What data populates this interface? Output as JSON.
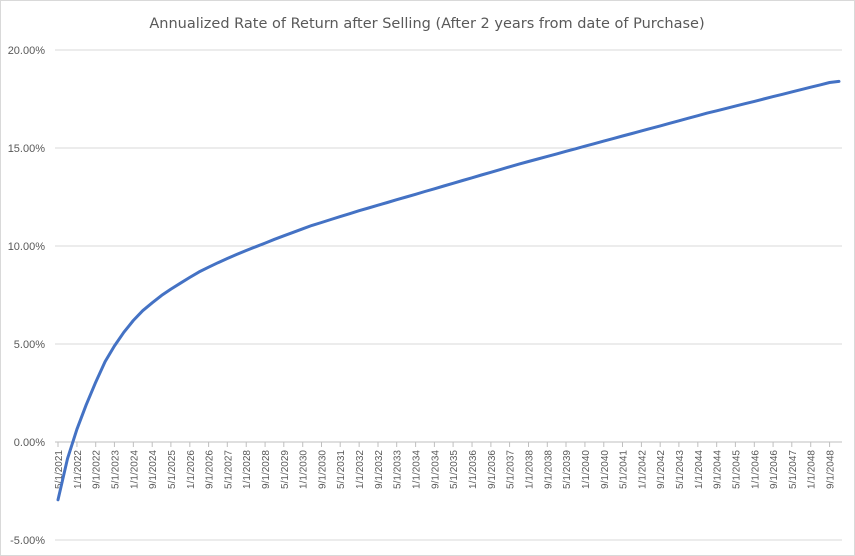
{
  "chart_data": {
    "type": "line",
    "title": "Annualized Rate of Return after Selling (After 2 years from date of Purchase)",
    "xlabel": "",
    "ylabel": "",
    "ylim": [
      -0.05,
      0.2
    ],
    "y_ticks": [
      "-5.00%",
      "0.00%",
      "5.00%",
      "10.00%",
      "15.00%",
      "20.00%"
    ],
    "x_ticks": [
      "5/1/2021",
      "1/1/2022",
      "9/1/2022",
      "5/1/2023",
      "1/1/2024",
      "9/1/2024",
      "5/1/2025",
      "1/1/2026",
      "9/1/2026",
      "5/1/2027",
      "1/1/2028",
      "9/1/2028",
      "5/1/2029",
      "1/1/2030",
      "9/1/2030",
      "5/1/2031",
      "1/1/2032",
      "9/1/2032",
      "5/1/2033",
      "1/1/2034",
      "9/1/2034",
      "5/1/2035",
      "1/1/2036",
      "9/1/2036",
      "5/1/2037",
      "1/1/2038",
      "9/1/2038",
      "5/1/2039",
      "1/1/2040",
      "9/1/2040",
      "5/1/2041",
      "1/1/2042",
      "9/1/2042",
      "5/1/2043",
      "1/1/2044",
      "9/1/2044",
      "5/1/2045",
      "1/1/2046",
      "9/1/2046",
      "5/1/2047",
      "1/1/2048",
      "9/1/2048"
    ],
    "grid": true,
    "legend": "none",
    "series": [
      {
        "color": "#4472C4",
        "x": [
          "5/1/2021",
          "9/1/2021",
          "1/1/2022",
          "5/1/2022",
          "9/1/2022",
          "1/1/2023",
          "5/1/2023",
          "9/1/2023",
          "1/1/2024",
          "5/1/2024",
          "9/1/2024",
          "1/1/2025",
          "5/1/2025",
          "9/1/2025",
          "1/1/2026",
          "5/1/2026",
          "9/1/2026",
          "1/1/2027",
          "5/1/2027",
          "9/1/2027",
          "1/1/2028",
          "5/1/2028",
          "9/1/2028",
          "1/1/2029",
          "5/1/2029",
          "9/1/2029",
          "1/1/2030",
          "5/1/2030",
          "9/1/2030",
          "1/1/2031",
          "5/1/2031",
          "9/1/2031",
          "1/1/2032",
          "5/1/2032",
          "9/1/2032",
          "1/1/2033",
          "5/1/2033",
          "9/1/2033",
          "1/1/2034",
          "5/1/2034",
          "9/1/2034",
          "1/1/2035",
          "5/1/2035",
          "9/1/2035",
          "1/1/2036",
          "5/1/2036",
          "9/1/2036",
          "1/1/2037",
          "5/1/2037",
          "9/1/2037",
          "1/1/2038",
          "5/1/2038",
          "9/1/2038",
          "1/1/2039",
          "5/1/2039",
          "9/1/2039",
          "1/1/2040",
          "5/1/2040",
          "9/1/2040",
          "1/1/2041",
          "5/1/2041",
          "9/1/2041",
          "1/1/2042",
          "5/1/2042",
          "9/1/2042",
          "1/1/2043",
          "5/1/2043",
          "9/1/2043",
          "1/1/2044",
          "5/1/2044",
          "9/1/2044",
          "1/1/2045",
          "5/1/2045",
          "9/1/2045",
          "1/1/2046",
          "5/1/2046",
          "9/1/2046",
          "1/1/2047",
          "5/1/2047",
          "9/1/2047",
          "1/1/2048",
          "5/1/2048",
          "9/1/2048",
          "1/1/2049"
        ],
        "values": [
          -0.0295,
          -0.0085,
          0.0065,
          0.019,
          0.0305,
          0.041,
          0.049,
          0.056,
          0.062,
          0.067,
          0.071,
          0.0748,
          0.078,
          0.081,
          0.084,
          0.0868,
          0.0892,
          0.0915,
          0.0936,
          0.0957,
          0.0977,
          0.0996,
          0.1015,
          0.1034,
          0.1052,
          0.107,
          0.1088,
          0.1105,
          0.112,
          0.1135,
          0.115,
          0.1165,
          0.118,
          0.1194,
          0.1208,
          0.1222,
          0.1236,
          0.125,
          0.1264,
          0.1278,
          0.1292,
          0.1306,
          0.132,
          0.1334,
          0.1348,
          0.1362,
          0.1376,
          0.139,
          0.1404,
          0.1418,
          0.1431,
          0.1444,
          0.1457,
          0.147,
          0.1483,
          0.1496,
          0.1509,
          0.1522,
          0.1535,
          0.1548,
          0.1561,
          0.1574,
          0.1587,
          0.16,
          0.1613,
          0.1626,
          0.1639,
          0.1652,
          0.1665,
          0.1678,
          0.169,
          0.1702,
          0.1714,
          0.1726,
          0.1738,
          0.175,
          0.1762,
          0.1774,
          0.1786,
          0.1798,
          0.181,
          0.1822,
          0.1834,
          0.184
        ]
      }
    ]
  }
}
